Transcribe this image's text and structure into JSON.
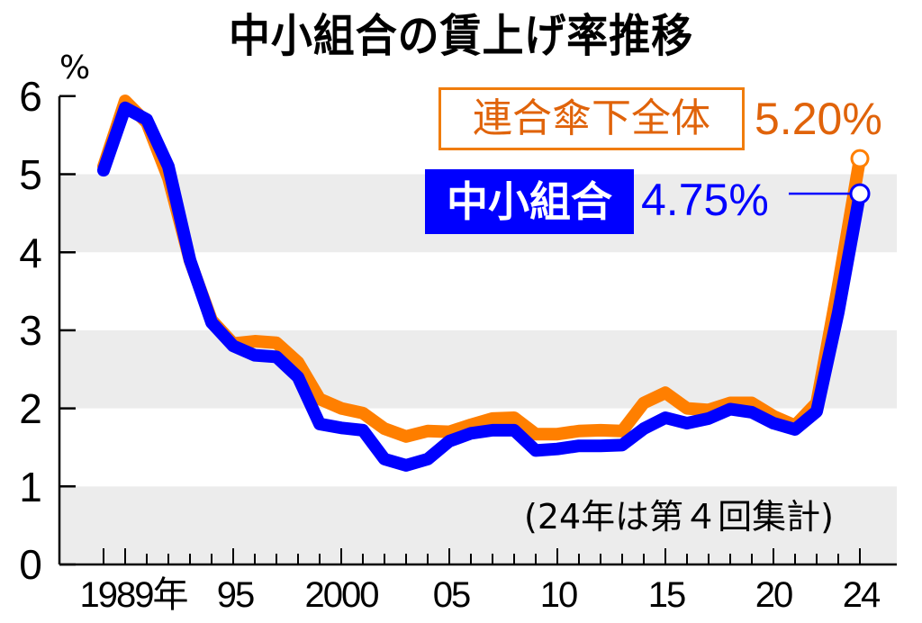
{
  "header": {
    "title": "中小組合の賃上げ率推移"
  },
  "axes": {
    "y_unit": "%",
    "y_ticks": [
      "6",
      "5",
      "4",
      "3",
      "2",
      "1",
      "0"
    ],
    "x_ticks": [
      "1989年",
      "95",
      "2000",
      "05",
      "10",
      "15",
      "20",
      "24"
    ]
  },
  "legend": {
    "orange_label": "連合傘下全体",
    "orange_value": "5.20%",
    "blue_label": "中小組合",
    "blue_value": "4.75%"
  },
  "note": "(24年は第４回集計)",
  "colors": {
    "orange": "#ff7f00",
    "orange_text": "#e0630a",
    "blue": "#0000ff",
    "band": "#ececec",
    "axis": "#000000"
  },
  "chart_data": {
    "type": "line",
    "title": "中小組合の賃上げ率推移",
    "xlabel": "年",
    "ylabel": "%",
    "ylim": [
      0,
      6
    ],
    "xlim": [
      1989,
      2024
    ],
    "grid": "alternating horizontal bands (0-1, 2-3, 4-5 shaded)",
    "annotations": [
      "(24年は第４回集計)",
      "連合傘下全体 5.20%",
      "中小組合 4.75%"
    ],
    "x": [
      1989,
      1990,
      1991,
      1992,
      1993,
      1994,
      1995,
      1996,
      1997,
      1998,
      1999,
      2000,
      2001,
      2002,
      2003,
      2004,
      2005,
      2006,
      2007,
      2008,
      2009,
      2010,
      2011,
      2012,
      2013,
      2014,
      2015,
      2016,
      2017,
      2018,
      2019,
      2020,
      2021,
      2022,
      2023,
      2024
    ],
    "series": [
      {
        "name": "連合傘下全体",
        "color": "#ff7f00",
        "values": [
          5.1,
          5.94,
          5.66,
          4.95,
          3.89,
          3.13,
          2.83,
          2.86,
          2.84,
          2.59,
          2.12,
          2.0,
          1.94,
          1.74,
          1.64,
          1.71,
          1.7,
          1.79,
          1.87,
          1.88,
          1.67,
          1.67,
          1.71,
          1.72,
          1.71,
          2.07,
          2.2,
          2.0,
          1.98,
          2.07,
          2.07,
          1.9,
          1.78,
          2.07,
          3.58,
          5.2
        ]
      },
      {
        "name": "中小組合",
        "color": "#0000ff",
        "values": [
          5.05,
          5.85,
          5.7,
          5.1,
          3.9,
          3.1,
          2.8,
          2.68,
          2.66,
          2.4,
          1.8,
          1.75,
          1.72,
          1.35,
          1.27,
          1.35,
          1.58,
          1.68,
          1.72,
          1.72,
          1.46,
          1.48,
          1.52,
          1.52,
          1.53,
          1.74,
          1.88,
          1.81,
          1.87,
          1.99,
          1.95,
          1.81,
          1.73,
          1.96,
          3.23,
          4.75
        ]
      }
    ]
  }
}
